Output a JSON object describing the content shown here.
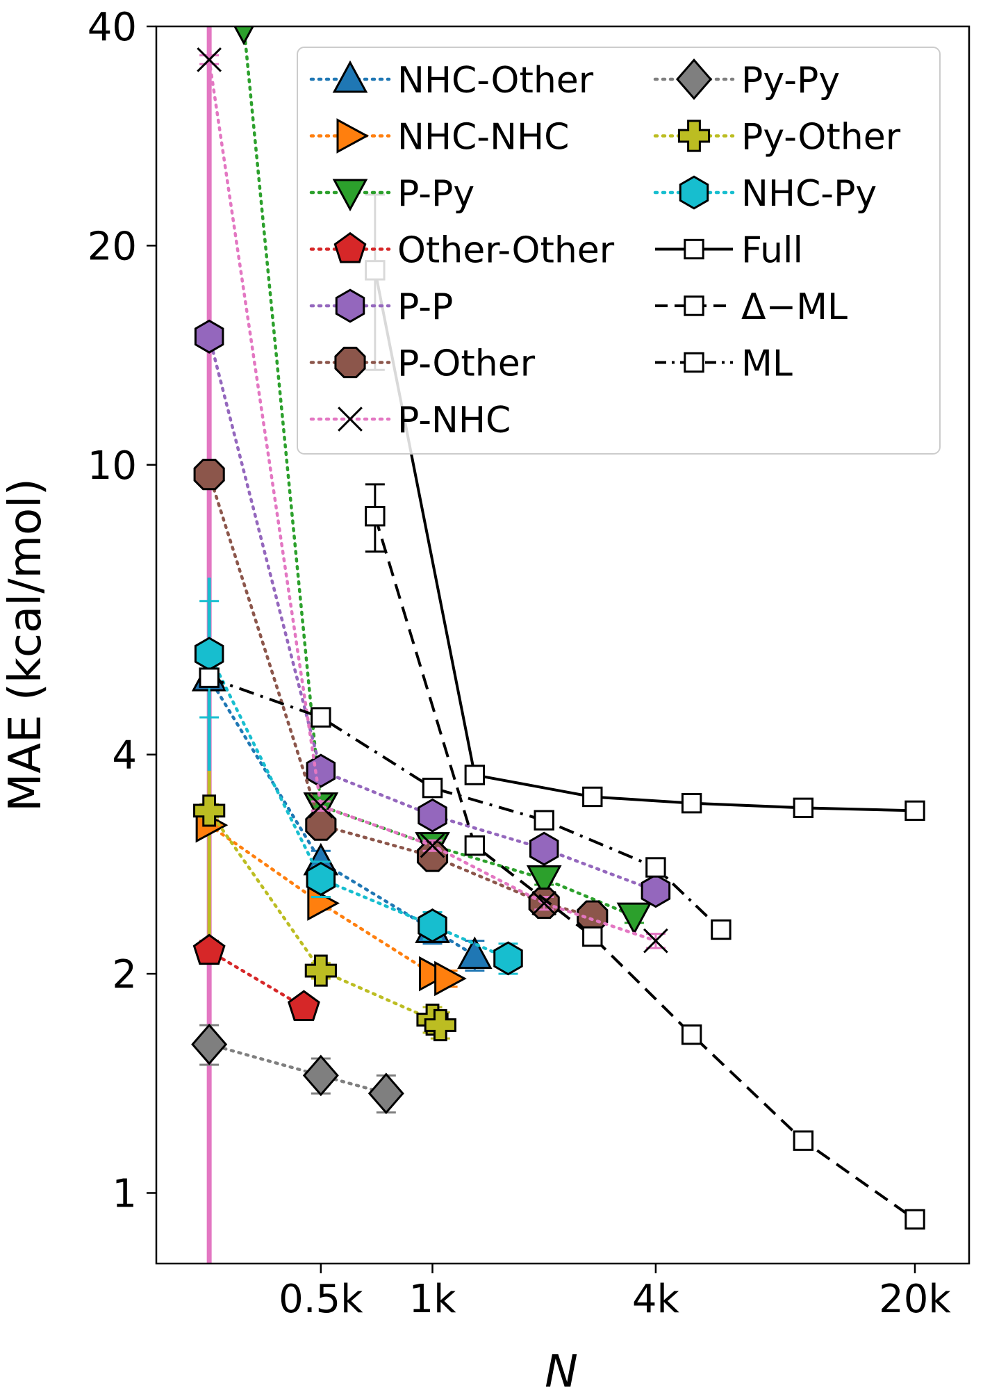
{
  "chart_data": {
    "type": "line",
    "x_scale": "log",
    "y_scale": "log",
    "xlim": [
      180,
      28000
    ],
    "ylim": [
      0.8,
      40
    ],
    "xlabel": "N",
    "ylabel": "MAE (kcal/mol)",
    "x_ticks": [
      {
        "value": 500,
        "label": "0.5k"
      },
      {
        "value": 1000,
        "label": "1k"
      },
      {
        "value": 4000,
        "label": "4k"
      },
      {
        "value": 20000,
        "label": "20k"
      }
    ],
    "y_ticks": [
      {
        "value": 1,
        "label": "1"
      },
      {
        "value": 2,
        "label": "2"
      },
      {
        "value": 4,
        "label": "4"
      },
      {
        "value": 10,
        "label": "10"
      },
      {
        "value": 20,
        "label": "20"
      },
      {
        "value": 40,
        "label": "40"
      }
    ],
    "legend_position": "top-right",
    "series": [
      {
        "name": "NHC-Other",
        "color": "#1f77b4",
        "marker": "triangle-up",
        "line": "dotted",
        "x": [
          250,
          500,
          1000,
          1300
        ],
        "y": [
          5.1,
          2.85,
          2.3,
          2.12
        ],
        "err": [
          0.1,
          0.1,
          0.1,
          0.1
        ]
      },
      {
        "name": "NHC-NHC",
        "color": "#ff7f0e",
        "marker": "triangle-right",
        "line": "dotted",
        "x": [
          250,
          500,
          1000,
          1100
        ],
        "y": [
          3.2,
          2.5,
          2.0,
          1.97
        ],
        "err": [
          0.05,
          0.05,
          0.05,
          0.05
        ]
      },
      {
        "name": "P-Py",
        "color": "#2ca02c",
        "marker": "triangle-down",
        "line": "dotted",
        "x": [
          310,
          500,
          1000,
          2000,
          3500
        ],
        "y": [
          40,
          3.4,
          3.0,
          2.7,
          2.4
        ],
        "err": [
          0,
          0.05,
          0.05,
          0.05,
          0.05
        ]
      },
      {
        "name": "Other-Other",
        "color": "#d62728",
        "marker": "pentagon",
        "line": "dotted",
        "x": [
          250,
          450
        ],
        "y": [
          2.15,
          1.8
        ],
        "err": [
          0.07,
          0.05
        ]
      },
      {
        "name": "P-P",
        "color": "#9467bd",
        "marker": "hexagon",
        "line": "dotted",
        "x": [
          250,
          500,
          1000,
          2000,
          4000
        ],
        "y": [
          15,
          3.8,
          3.3,
          2.97,
          2.6
        ],
        "err": [
          0.3,
          0.05,
          0.05,
          0.05,
          0.05
        ]
      },
      {
        "name": "P-Other",
        "color": "#8c564b",
        "marker": "octagon",
        "line": "dotted",
        "x": [
          250,
          500,
          1000,
          2000,
          2700
        ],
        "y": [
          9.7,
          3.2,
          2.9,
          2.5,
          2.4
        ],
        "err": [
          0.1,
          0.05,
          0.05,
          0.05,
          0.05
        ]
      },
      {
        "name": "P-NHC",
        "color": "#e377c2",
        "marker": "x",
        "line": "dotted",
        "x": [
          250,
          500,
          1000,
          2000,
          4000
        ],
        "y": [
          36,
          3.4,
          3.0,
          2.5,
          2.22
        ],
        "err": [
          0.5,
          0.05,
          0.05,
          0.05,
          0.05
        ]
      },
      {
        "name": "Py-Py",
        "color": "#7f7f7f",
        "marker": "diamond",
        "line": "dotted",
        "x": [
          250,
          500,
          750
        ],
        "y": [
          1.6,
          1.45,
          1.37
        ],
        "err": [
          0.1,
          0.08,
          0.08
        ]
      },
      {
        "name": "Py-Other",
        "color": "#bcbd22",
        "marker": "plus",
        "line": "dotted",
        "x": [
          250,
          500,
          1000,
          1050
        ],
        "y": [
          3.35,
          2.02,
          1.73,
          1.7
        ],
        "err": [
          0.07,
          0.05,
          0.07,
          0.07
        ]
      },
      {
        "name": "NHC-Py",
        "color": "#17becf",
        "marker": "hexagon",
        "line": "dotted",
        "x": [
          250,
          500,
          1000,
          1600
        ],
        "y": [
          5.5,
          2.7,
          2.33,
          2.1
        ],
        "err": [
          1.0,
          0.15,
          0.1,
          0.1
        ]
      },
      {
        "name": "Full",
        "color": "#000000",
        "marker": "square-open",
        "line": "solid",
        "x": [
          700,
          1300,
          2700,
          5000,
          10000,
          20000
        ],
        "y": [
          18.5,
          3.75,
          3.5,
          3.43,
          3.38,
          3.35
        ],
        "err": [
          5.0,
          0.05,
          0.05,
          0.05,
          0.05,
          0.05
        ]
      },
      {
        "name": "Δ−ML",
        "color": "#000000",
        "marker": "square-open",
        "line": "dashed",
        "x": [
          700,
          1300,
          2700,
          5000,
          10000,
          20000
        ],
        "y": [
          8.5,
          3.0,
          2.25,
          1.65,
          1.18,
          0.92
        ],
        "err": [
          0.9,
          0.05,
          0.04,
          0.03,
          0.02,
          0.02
        ]
      },
      {
        "name": "ML",
        "color": "#000000",
        "marker": "square-open",
        "line": "dashdot",
        "x": [
          250,
          500,
          1000,
          2000,
          4000,
          6000
        ],
        "y": [
          5.1,
          4.5,
          3.6,
          3.25,
          2.8,
          2.3
        ],
        "err": [
          0.12,
          0.1,
          0.06,
          0.06,
          0.05,
          0.05
        ]
      }
    ],
    "annotations": [
      {
        "type": "vertical-band",
        "x": 250,
        "color": "#e377c2",
        "note": "error bars at N=250 span full height"
      }
    ]
  }
}
